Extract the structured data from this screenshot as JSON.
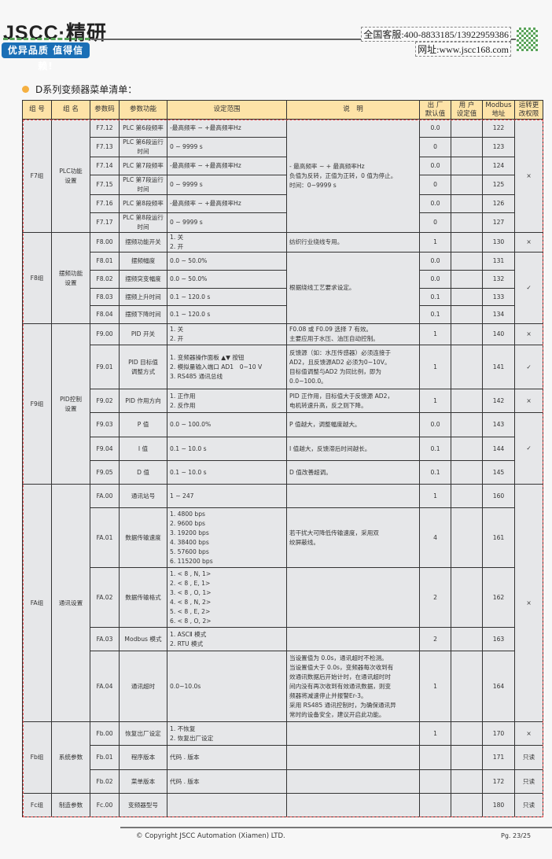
{
  "header": {
    "logo_text": "JSCC·精研",
    "slogan": "优异品质 值得信赖!",
    "hotline": "全国客服:400-8833185/13922959386",
    "website": "网址:www.jscc168.com"
  },
  "section_title": "D系列变频器菜单清单：",
  "columns": [
    "组 号",
    "组 名",
    "参数码",
    "参数功能",
    "设定范围",
    "说　明",
    "出 厂\n默认值",
    "用 户\n设定值",
    "Modbus\n地址",
    "运转更\n改权限"
  ],
  "colors": {
    "header_bg": "#fde3a7",
    "cell_bg": "#e6e7e9",
    "accent_dot": "#f5b041",
    "border_dashed": "#e84a4a"
  },
  "groups": [
    {
      "id": "F7组",
      "name": "PLC功能\n设置",
      "params": [
        {
          "code": "F7.12",
          "func": "PLC 第6段频率",
          "range": "-最高频率 ~ +最高频率Hz",
          "desc": "- 最高频率 ~ + 最高频率Hz\n负值为反转，正值为正转，0 值为停止。\n时间：0~9999 s",
          "desc_span": 6,
          "default": "0.0",
          "addr": "122",
          "perm": "×",
          "perm_span": 6,
          "h": 23
        },
        {
          "code": "F7.13",
          "func": "PLC 第6段运行\n时间",
          "range": "0 ~ 9999 s",
          "default": "0",
          "addr": "123",
          "h": 23
        },
        {
          "code": "F7.14",
          "func": "PLC 第7段频率",
          "range": "-最高频率 ~ +最高频率Hz",
          "default": "0.0",
          "addr": "124",
          "h": 23
        },
        {
          "code": "F7.15",
          "func": "PLC 第7段运行\n时间",
          "range": "0 ~ 9999 s",
          "default": "0",
          "addr": "125",
          "h": 23
        },
        {
          "code": "F7.16",
          "func": "PLC 第8段频率",
          "range": "-最高频率 ~ +最高频率Hz",
          "default": "0.0",
          "addr": "126",
          "h": 23
        },
        {
          "code": "F7.17",
          "func": "PLC 第8段运行\n时间",
          "range": "0 ~ 9999 s",
          "default": "0",
          "addr": "127",
          "h": 22
        }
      ]
    },
    {
      "id": "F8组",
      "name": "摆频功能\n设置",
      "params": [
        {
          "code": "F8.00",
          "func": "摆频功能开关",
          "range": "1. 关\n2. 开",
          "desc": "纺织行业绕线专用。",
          "desc_span": 1,
          "default": "1",
          "addr": "130",
          "perm": "×",
          "perm_span": 1,
          "h": 23
        },
        {
          "code": "F8.01",
          "func": "摆频幅度",
          "range": "0.0 ~ 50.0%",
          "desc": "根据绕线工艺要求设定。",
          "desc_span": 4,
          "default": "0.0",
          "addr": "131",
          "perm": "✓",
          "perm_span": 4,
          "h": 23
        },
        {
          "code": "F8.02",
          "func": "摆频突变幅度",
          "range": "0.0 ~ 50.0%",
          "default": "0.0",
          "addr": "132",
          "h": 23
        },
        {
          "code": "F8.03",
          "func": "摆频上升时间",
          "range": "0.1 ~ 120.0 s",
          "default": "0.1",
          "addr": "133",
          "h": 22
        },
        {
          "code": "F8.04",
          "func": "摆频下降时间",
          "range": "0.1 ~ 120.0 s",
          "default": "0.1",
          "addr": "134",
          "h": 23
        }
      ]
    },
    {
      "id": "F9组",
      "name": "PID控制\n设置",
      "params": [
        {
          "code": "F9.00",
          "func": "PID 开关",
          "range": "1. 关\n2. 开",
          "desc": "F0.08 或 F0.09 选择 7 有效。\n主要应用于水压、油压自动控制。",
          "desc_span": 1,
          "default": "1",
          "addr": "140",
          "perm": "×",
          "perm_span": 1,
          "h": 27
        },
        {
          "code": "F9.01",
          "func": "PID 目标值\n调整方式",
          "range": "1. 变频器操作面板 ▲▼ 按钮\n2. 模拟量输入端口 AD1　0~10 V\n3. RS485 通讯总线",
          "desc": "反馈源（如：水压传感器）必须连接于\nAD2，且反馈源AD2 必须为0~10V。\n目标值调整与AD2 为同比例，即为0.0~100.0。",
          "desc_span": 1,
          "default": "1",
          "addr": "141",
          "perm": "✓",
          "perm_span": 1,
          "h": 56
        },
        {
          "code": "F9.02",
          "func": "PID 作用方向",
          "range": "1. 正作用\n2. 反作用",
          "desc": "PID 正作用，目标值大于反馈源 AD2，\n电机转速升高，反之则下降。",
          "desc_span": 1,
          "default": "1",
          "addr": "142",
          "perm": "×",
          "perm_span": 1,
          "h": 30
        },
        {
          "code": "F9.03",
          "func": "P 值",
          "range": "0.0 ~ 100.0%",
          "desc": "P 值越大，调整幅度越大。",
          "desc_span": 1,
          "default": "0.0",
          "addr": "143",
          "perm": "✓",
          "perm_span": 3,
          "h": 31
        },
        {
          "code": "F9.04",
          "func": "I 值",
          "range": "0.1 ~ 10.0 s",
          "desc": "I 值越大，反馈滞后时间越长。",
          "desc_span": 1,
          "default": "0.1",
          "addr": "144",
          "h": 30
        },
        {
          "code": "F9.05",
          "func": "D 值",
          "range": "0.1 ~ 10.0 s",
          "desc": "D 值改善超调。",
          "desc_span": 1,
          "default": "0.1",
          "addr": "145",
          "h": 30
        }
      ]
    },
    {
      "id": "FA组",
      "name": "通讯设置",
      "params": [
        {
          "code": "FA.00",
          "func": "通讯站号",
          "range": "1 ~ 247",
          "desc": "",
          "desc_span": 1,
          "default": "1",
          "addr": "160",
          "perm": "×",
          "perm_span": 5,
          "h": 30
        },
        {
          "code": "FA.01",
          "func": "数据传输速度",
          "range": "1. 4800 bps\n2. 9600 bps\n3. 19200 bps\n4. 38400 bps\n5. 57600 bps\n6. 115200 bps",
          "desc": "若干扰大可降低传输速度，采用双\n绞屏蔽线。",
          "desc_span": 1,
          "default": "4",
          "addr": "161",
          "h": 76
        },
        {
          "code": "FA.02",
          "func": "数据传输格式",
          "range": "1. < 8 ,  N,  1>\n2. < 8 ,  E,  1>\n3. < 8 ,  O,  1>\n4. < 8 ,  N,  2>\n5. < 8 ,  E,  2>\n6. < 8 ,  O,  2>",
          "desc": "",
          "desc_span": 1,
          "default": "2",
          "addr": "162",
          "h": 76
        },
        {
          "code": "FA.03",
          "func": "Modbus 模式",
          "range": "1. ASCⅡ 模式\n2. RTU 模式",
          "desc": "",
          "desc_span": 1,
          "default": "2",
          "addr": "163",
          "h": 30
        },
        {
          "code": "FA.04",
          "func": "通讯超时",
          "range": "0.0~10.0s",
          "desc": "当设置值为 0.0s，通讯超时不检测。\n当设置值大于 0.0s，变频器每次收到有\n效通讯数据后开始计时，在通讯超时时\n间内没有再次收到有效通讯数据，则变\n频器将减速停止并报警Er-3。\n采用 RS485 通讯控制时，为确保通讯异\n常时的设备安全，建议开启此功能。",
          "desc_span": 1,
          "default": "1",
          "addr": "164",
          "h": 90
        }
      ]
    },
    {
      "id": "Fb组",
      "name": "系统参数",
      "params": [
        {
          "code": "Fb.00",
          "func": "恢复出厂设定",
          "range": "1. 不恢复\n2. 恢复出厂设定",
          "desc": "",
          "desc_span": 1,
          "default": "1",
          "addr": "170",
          "perm": "×",
          "perm_span": 1,
          "h": 30
        },
        {
          "code": "Fb.01",
          "func": "程序版本",
          "range": "代码 . 版本",
          "desc": "",
          "desc_span": 1,
          "default": "",
          "addr": "171",
          "perm": "只读",
          "perm_span": 1,
          "h": 31
        },
        {
          "code": "Fb.02",
          "func": "菜单版本",
          "range": "代码 . 版本",
          "desc": "",
          "desc_span": 1,
          "default": "",
          "addr": "172",
          "perm": "只读",
          "perm_span": 1,
          "h": 30
        }
      ]
    },
    {
      "id": "Fc组",
      "name": "制造参数",
      "params": [
        {
          "code": "Fc.00",
          "func": "变频器型号",
          "range": "",
          "desc": "",
          "desc_span": 1,
          "default": "",
          "addr": "180",
          "perm": "只读",
          "perm_span": 1,
          "h": 30
        }
      ]
    }
  ],
  "footer": {
    "copyright": "© Copyright JSCC Automation (Xiamen) LTD.",
    "page": "Pg. 23/25"
  }
}
